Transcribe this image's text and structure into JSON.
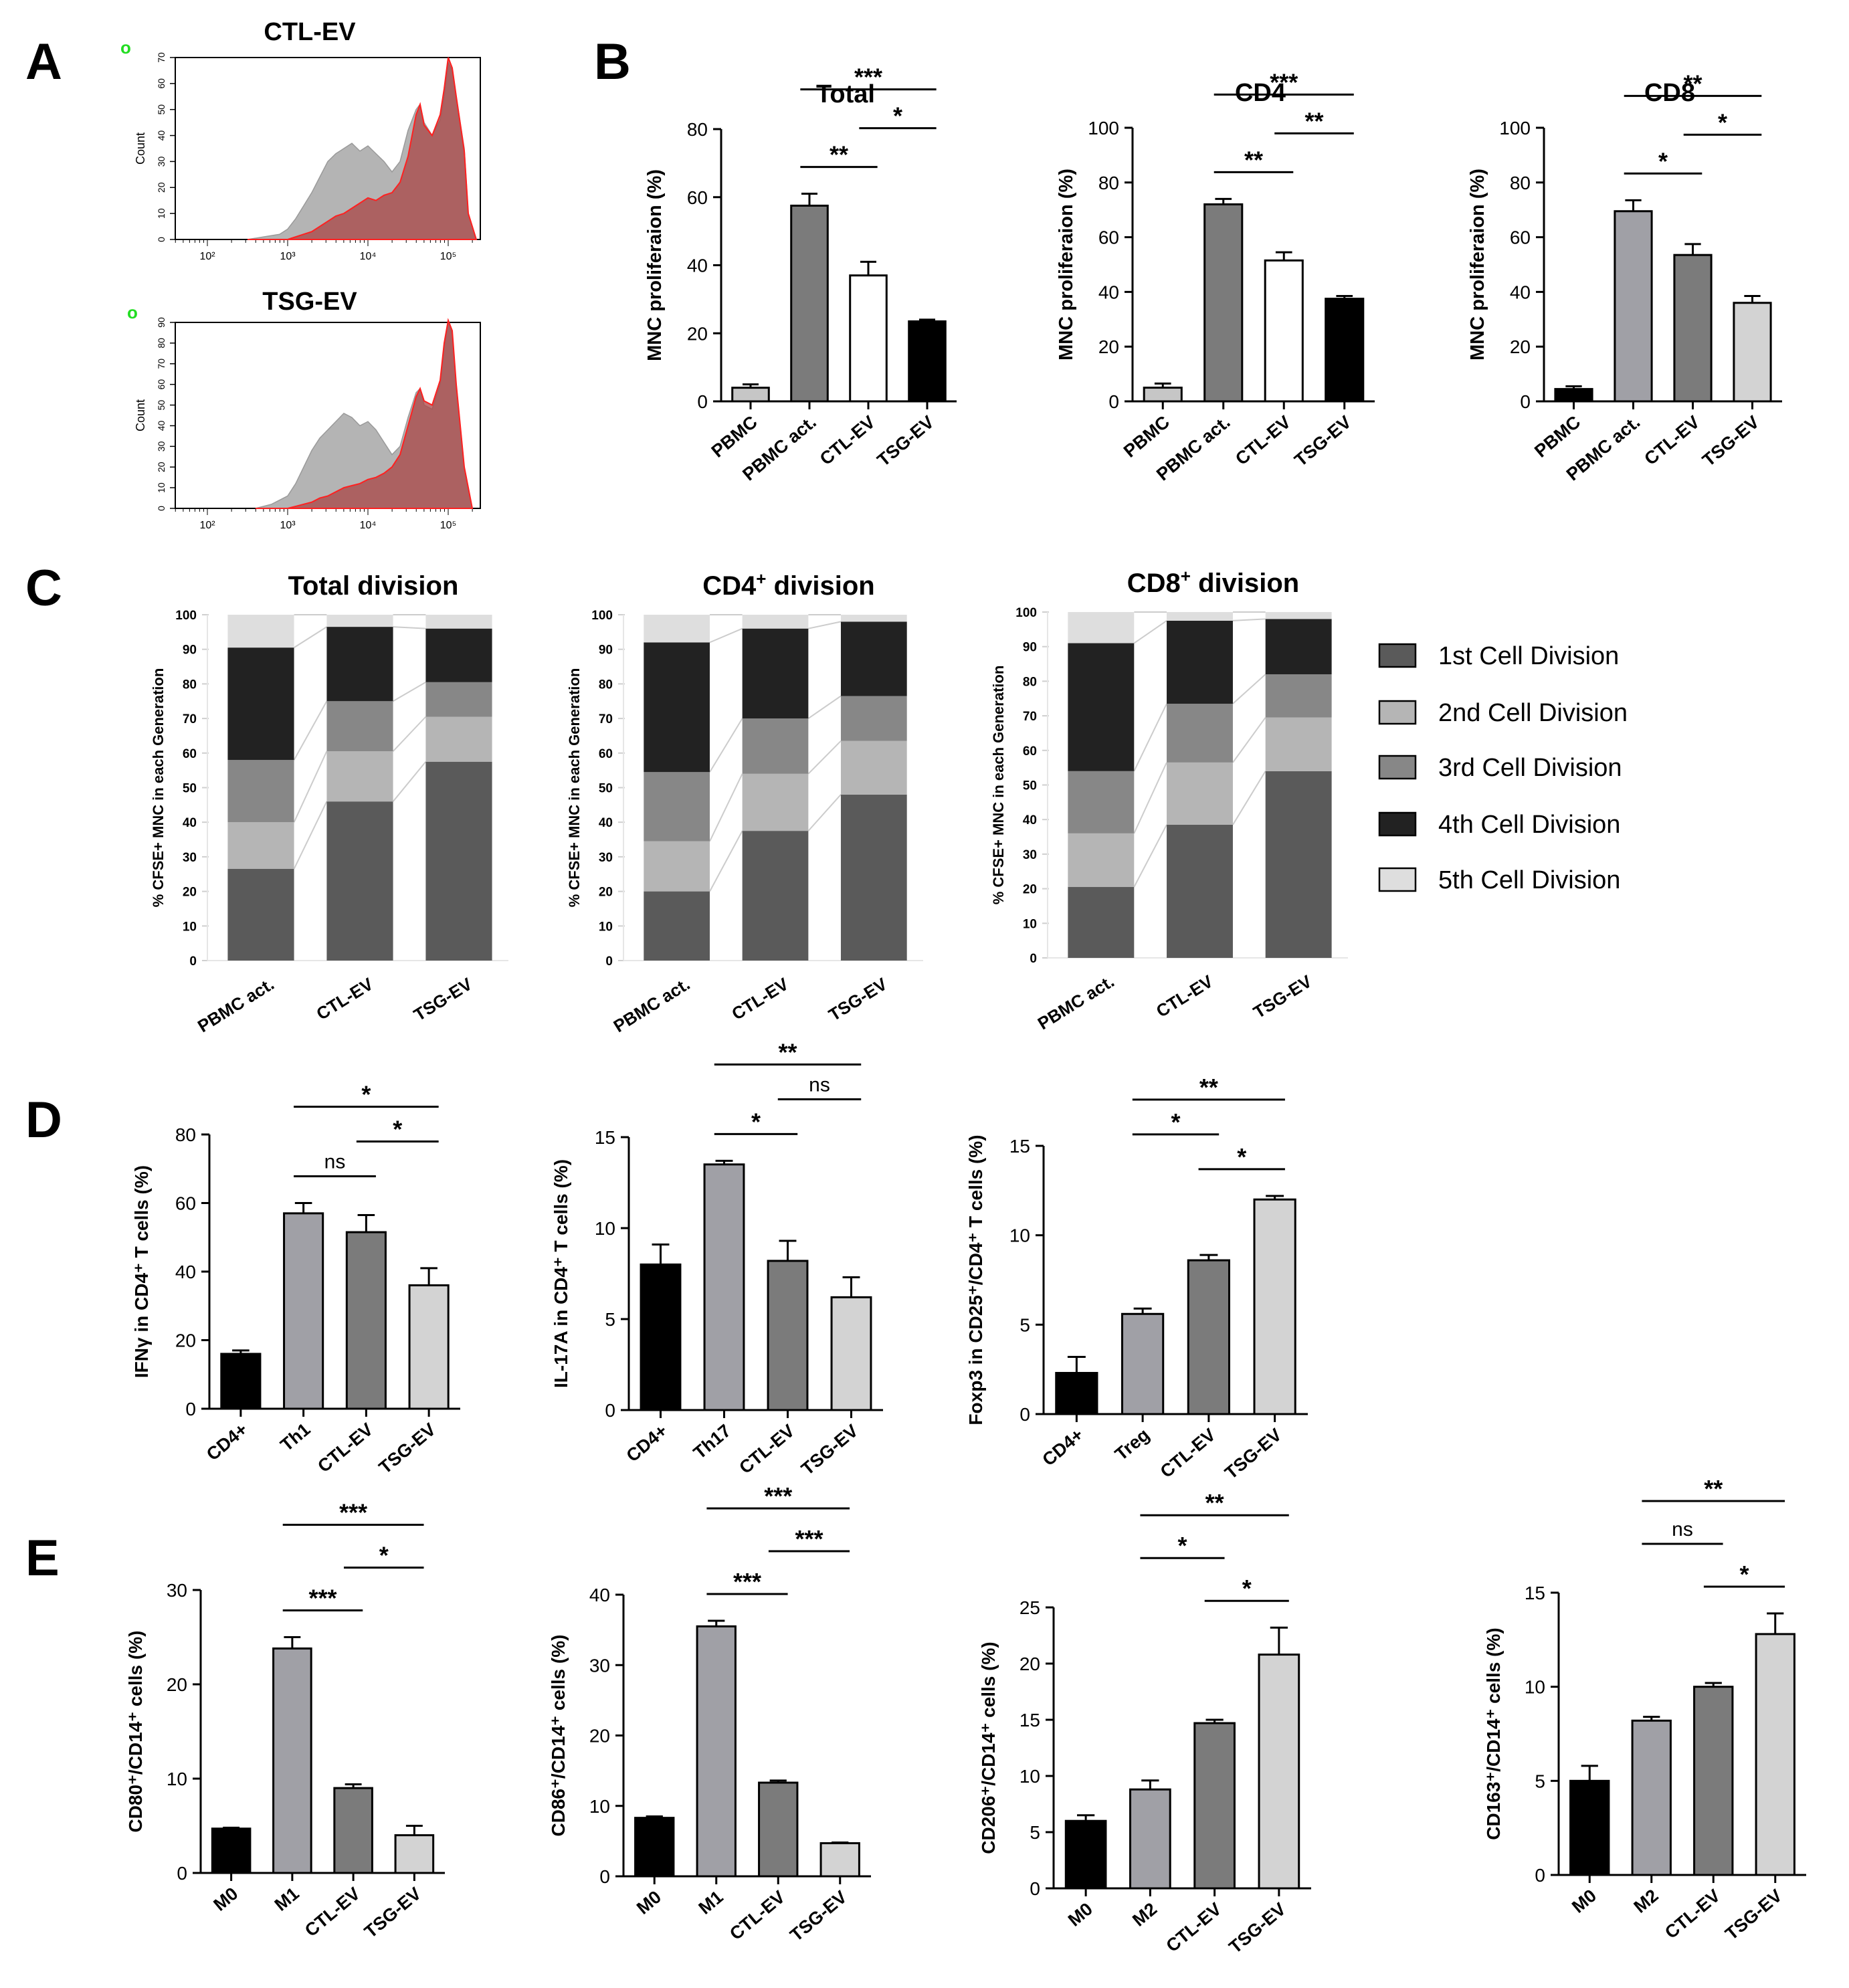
{
  "panel_letters": [
    "A",
    "B",
    "C",
    "D",
    "E"
  ],
  "chart_data": [
    {
      "id": "A",
      "type": "histogram",
      "ylabel": "Count",
      "xaxis_scale": "log",
      "x_ticks": [
        "10²",
        "10³",
        "10⁴",
        "10⁵"
      ],
      "plots": [
        {
          "title": "CTL-EV",
          "gate_mark": "o",
          "y_ticks": [
            "0",
            "10",
            "20",
            "30",
            "40",
            "50",
            "60",
            "70"
          ],
          "ymax": 70,
          "x": [
            2.5,
            2.7,
            2.9,
            3.0,
            3.1,
            3.2,
            3.3,
            3.4,
            3.5,
            3.6,
            3.7,
            3.8,
            3.9,
            4.0,
            4.1,
            4.2,
            4.3,
            4.4,
            4.5,
            4.6,
            4.65,
            4.7,
            4.8,
            4.9,
            4.95,
            5.0,
            5.05,
            5.1,
            5.2,
            5.25,
            5.35
          ],
          "gray": [
            0,
            1,
            2,
            4,
            8,
            13,
            18,
            24,
            30,
            33,
            35,
            37,
            34,
            36,
            33,
            30,
            26,
            30,
            42,
            50,
            52,
            45,
            40,
            46,
            55,
            68,
            65,
            55,
            35,
            10,
            0
          ],
          "red": [
            0,
            0,
            0,
            0,
            1,
            2,
            3,
            5,
            7,
            9,
            10,
            12,
            14,
            16,
            15,
            17,
            18,
            22,
            32,
            48,
            52,
            44,
            40,
            48,
            58,
            70,
            66,
            55,
            34,
            10,
            0
          ]
        },
        {
          "title": "TSG-EV",
          "gate_mark": "o",
          "y_ticks": [
            "0",
            "10",
            "20",
            "30",
            "40",
            "50",
            "60",
            "70",
            "80",
            "90"
          ],
          "ymax": 90,
          "x": [
            2.6,
            2.8,
            3.0,
            3.1,
            3.2,
            3.3,
            3.4,
            3.5,
            3.6,
            3.7,
            3.8,
            3.9,
            4.0,
            4.1,
            4.2,
            4.3,
            4.4,
            4.5,
            4.6,
            4.65,
            4.7,
            4.8,
            4.9,
            4.95,
            5.0,
            5.05,
            5.1,
            5.2,
            5.3
          ],
          "gray": [
            0,
            2,
            6,
            12,
            20,
            28,
            34,
            38,
            42,
            46,
            44,
            40,
            42,
            38,
            32,
            26,
            30,
            44,
            56,
            58,
            50,
            48,
            60,
            78,
            90,
            84,
            60,
            20,
            0
          ],
          "red": [
            0,
            0,
            0,
            1,
            2,
            3,
            5,
            6,
            8,
            10,
            11,
            12,
            14,
            15,
            17,
            20,
            26,
            40,
            54,
            58,
            52,
            50,
            62,
            80,
            91,
            86,
            60,
            20,
            0
          ]
        }
      ]
    },
    {
      "id": "B",
      "type": "bar",
      "ylabel": "MNC proliferaion  (%)",
      "categories": [
        "PBMC",
        "PBMC act.",
        "CTL-EV",
        "TSG-EV"
      ],
      "plots": [
        {
          "title": "Total",
          "ylim": [
            0,
            80
          ],
          "y_ticks": [
            "0",
            "20",
            "40",
            "60",
            "80"
          ],
          "values": [
            4,
            57.5,
            37,
            23.5
          ],
          "errors": [
            1,
            3.5,
            4,
            0.5
          ],
          "fills": [
            "#c6c6c6",
            "#7b7b7b",
            "#ffffff",
            "#000000"
          ],
          "sig": [
            {
              "from": 1,
              "to": 3,
              "label": "***"
            },
            {
              "from": 1,
              "to": 2,
              "label": "**"
            },
            {
              "from": 2,
              "to": 3,
              "label": "*"
            }
          ]
        },
        {
          "title": "CD4",
          "ylim": [
            0,
            100
          ],
          "y_ticks": [
            "0",
            "20",
            "40",
            "60",
            "80",
            "100"
          ],
          "values": [
            5,
            72,
            51.5,
            37.5
          ],
          "errors": [
            1.5,
            2,
            3,
            1
          ],
          "fills": [
            "#c6c6c6",
            "#7b7b7b",
            "#ffffff",
            "#000000"
          ],
          "sig": [
            {
              "from": 1,
              "to": 3,
              "label": "***"
            },
            {
              "from": 1,
              "to": 2,
              "label": "**"
            },
            {
              "from": 2,
              "to": 3,
              "label": "**"
            }
          ]
        },
        {
          "title": "CD8",
          "ylim": [
            0,
            100
          ],
          "y_ticks": [
            "0",
            "20",
            "40",
            "60",
            "80",
            "100"
          ],
          "values": [
            4.5,
            69.5,
            53.5,
            36
          ],
          "errors": [
            1,
            4,
            4,
            2.5
          ],
          "fills": [
            "#000000",
            "#a0a0a6",
            "#7b7b7b",
            "#d3d3d3"
          ],
          "sig": [
            {
              "from": 1,
              "to": 3,
              "label": "**"
            },
            {
              "from": 1,
              "to": 2,
              "label": "*"
            },
            {
              "from": 2,
              "to": 3,
              "label": "*"
            }
          ]
        }
      ]
    },
    {
      "id": "C",
      "type": "stacked-bar",
      "ylabel": "% CFSE+ MNC in each Generation",
      "categories": [
        "PBMC act.",
        "CTL-EV",
        "TSG-EV"
      ],
      "ylim": [
        0,
        100
      ],
      "y_ticks": [
        "0",
        "10",
        "20",
        "30",
        "40",
        "50",
        "60",
        "70",
        "80",
        "90",
        "100"
      ],
      "legend": [
        "1st Cell Division",
        "2nd Cell Division",
        "3rd Cell Division",
        "4th Cell Division",
        "5th Cell Division"
      ],
      "colors": [
        "#5a5a5a",
        "#b5b5b5",
        "#878787",
        "#222222",
        "#dedede"
      ],
      "plots": [
        {
          "title": "Total division",
          "title_sup": "",
          "stacks": [
            [
              26.5,
              13.5,
              18,
              32.5,
              9.5
            ],
            [
              46,
              14.5,
              14.5,
              21.5,
              3.5
            ],
            [
              57.5,
              13,
              10,
              15.5,
              4
            ]
          ]
        },
        {
          "title": "CD4",
          "title_sup": "+",
          "title_rest": " division",
          "stacks": [
            [
              20,
              14.5,
              20,
              37.5,
              8
            ],
            [
              37.5,
              16.5,
              16,
              26,
              4
            ],
            [
              48,
              15.5,
              13,
              21.5,
              2
            ]
          ]
        },
        {
          "title": "CD8",
          "title_sup": "+",
          "title_rest": " division",
          "stacks": [
            [
              20.5,
              15.5,
              18,
              37,
              9
            ],
            [
              38.5,
              18,
              17,
              24,
              2.5
            ],
            [
              54,
              15.5,
              12.5,
              16,
              2
            ]
          ]
        }
      ]
    },
    {
      "id": "D",
      "type": "bar",
      "plots": [
        {
          "ylabel": "IFNγ in CD4⁺ T cells (%)",
          "categories": [
            "CD4+",
            "Th1",
            "CTL-EV",
            "TSG-EV"
          ],
          "ylim": [
            0,
            80
          ],
          "y_ticks": [
            "0",
            "20",
            "40",
            "60",
            "80"
          ],
          "values": [
            16,
            57,
            51.5,
            36
          ],
          "errors": [
            1,
            3,
            5,
            5
          ],
          "fills": [
            "#000000",
            "#a0a0a6",
            "#7b7b7b",
            "#d3d3d3"
          ],
          "sig": [
            {
              "from": 1,
              "to": 3,
              "label": "*"
            },
            {
              "from": 1,
              "to": 2,
              "label": "ns"
            },
            {
              "from": 2,
              "to": 3,
              "label": "*"
            }
          ]
        },
        {
          "ylabel": "IL-17A in CD4⁺ T cells (%)",
          "categories": [
            "CD4+",
            "Th17",
            "CTL-EV",
            "TSG-EV"
          ],
          "ylim": [
            0,
            15
          ],
          "y_ticks": [
            "0",
            "5",
            "10",
            "15"
          ],
          "values": [
            8,
            13.5,
            8.2,
            6.2
          ],
          "errors": [
            1.1,
            0.2,
            1.1,
            1.1
          ],
          "fills": [
            "#000000",
            "#a0a0a6",
            "#7b7b7b",
            "#d3d3d3"
          ],
          "sig": [
            {
              "from": 1,
              "to": 3,
              "label": "**"
            },
            {
              "from": 1,
              "to": 2,
              "label": "*"
            },
            {
              "from": 2,
              "to": 3,
              "label": "ns"
            }
          ]
        },
        {
          "ylabel": "Foxp3 in CD25⁺/CD4⁺ T cells (%)",
          "categories": [
            "CD4+",
            "Treg",
            "CTL-EV",
            "TSG-EV"
          ],
          "ylim": [
            0,
            15
          ],
          "y_ticks": [
            "0",
            "5",
            "10",
            "15"
          ],
          "values": [
            2.3,
            5.6,
            8.6,
            12
          ],
          "errors": [
            0.9,
            0.3,
            0.3,
            0.2
          ],
          "fills": [
            "#000000",
            "#a0a0a6",
            "#7b7b7b",
            "#d3d3d3"
          ],
          "sig": [
            {
              "from": 1,
              "to": 3,
              "label": "**"
            },
            {
              "from": 2,
              "to": 3,
              "label": "*"
            },
            {
              "from": 1,
              "to": 2,
              "label": "*"
            }
          ]
        }
      ]
    },
    {
      "id": "E",
      "type": "bar",
      "plots": [
        {
          "ylabel": "CD80⁺/CD14⁺ cells  (%)",
          "categories": [
            "M0",
            "M1",
            "CTL-EV",
            "TSG-EV"
          ],
          "ylim": [
            0,
            30
          ],
          "y_ticks": [
            "0",
            "10",
            "20",
            "30"
          ],
          "values": [
            4.7,
            23.8,
            9,
            4
          ],
          "errors": [
            0.1,
            1.2,
            0.4,
            1
          ],
          "fills": [
            "#000000",
            "#a0a0a6",
            "#7b7b7b",
            "#d3d3d3"
          ],
          "sig": [
            {
              "from": 1,
              "to": 3,
              "label": "***"
            },
            {
              "from": 1,
              "to": 2,
              "label": "***"
            },
            {
              "from": 2,
              "to": 3,
              "label": "*"
            }
          ]
        },
        {
          "ylabel": "CD86⁺/CD14⁺ cells  (%)",
          "categories": [
            "M0",
            "M1",
            "CTL-EV",
            "TSG-EV"
          ],
          "ylim": [
            0,
            40
          ],
          "y_ticks": [
            "0",
            "10",
            "20",
            "30",
            "40"
          ],
          "values": [
            8.3,
            35.5,
            13.3,
            4.7
          ],
          "errors": [
            0.2,
            0.8,
            0.3,
            0.1
          ],
          "fills": [
            "#000000",
            "#a0a0a6",
            "#7b7b7b",
            "#d3d3d3"
          ],
          "sig": [
            {
              "from": 1,
              "to": 3,
              "label": "***"
            },
            {
              "from": 1,
              "to": 2,
              "label": "***"
            },
            {
              "from": 2,
              "to": 3,
              "label": "***"
            }
          ]
        },
        {
          "ylabel": "CD206⁺/CD14⁺ cells  (%)",
          "categories": [
            "M0",
            "M2",
            "CTL-EV",
            "TSG-EV"
          ],
          "ylim": [
            0,
            25
          ],
          "y_ticks": [
            "0",
            "5",
            "10",
            "15",
            "20",
            "25"
          ],
          "values": [
            6,
            8.8,
            14.7,
            20.8
          ],
          "errors": [
            0.5,
            0.8,
            0.3,
            2.4
          ],
          "fills": [
            "#000000",
            "#a0a0a6",
            "#7b7b7b",
            "#d3d3d3"
          ],
          "sig": [
            {
              "from": 1,
              "to": 3,
              "label": "**"
            },
            {
              "from": 2,
              "to": 3,
              "label": "*"
            },
            {
              "from": 1,
              "to": 2,
              "label": "*"
            }
          ]
        },
        {
          "ylabel": "CD163⁺/CD14⁺ cells  (%)",
          "categories": [
            "M0",
            "M2",
            "CTL-EV",
            "TSG-EV"
          ],
          "ylim": [
            0,
            15
          ],
          "y_ticks": [
            "0",
            "5",
            "10",
            "15"
          ],
          "values": [
            5,
            8.2,
            10,
            12.8
          ],
          "errors": [
            0.8,
            0.2,
            0.2,
            1.1
          ],
          "fills": [
            "#000000",
            "#a0a0a6",
            "#7b7b7b",
            "#d3d3d3"
          ],
          "sig": [
            {
              "from": 1,
              "to": 3,
              "label": "**"
            },
            {
              "from": 2,
              "to": 3,
              "label": "*"
            },
            {
              "from": 1,
              "to": 2,
              "label": "ns"
            }
          ]
        }
      ]
    }
  ]
}
